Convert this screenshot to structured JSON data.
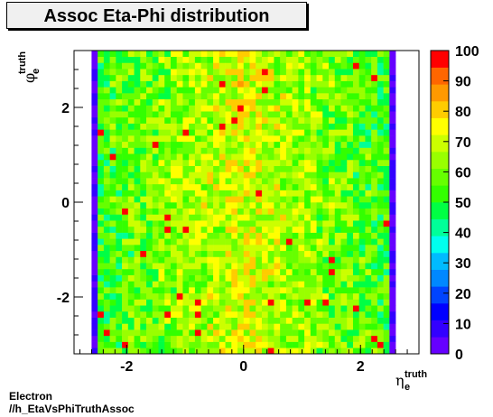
{
  "title": "Assoc Eta-Phi distribution",
  "footer": {
    "line1": "Electron",
    "line2": "//h_EtaVsPhiTruthAssoc"
  },
  "chart_data": {
    "type": "heatmap",
    "title": "Assoc Eta-Phi distribution",
    "xlabel": {
      "symbol": "η",
      "superscript": "truth",
      "subscript": "e"
    },
    "ylabel": {
      "symbol": "φ",
      "superscript": "truth",
      "subscript": "e"
    },
    "xlim": [
      -2.9,
      3.0
    ],
    "ylim": [
      -3.2,
      3.2
    ],
    "xticks": [
      -2,
      0,
      2
    ],
    "yticks": [
      -2,
      0,
      2
    ],
    "zlim": [
      0,
      100
    ],
    "zticks": [
      0,
      10,
      20,
      30,
      40,
      50,
      60,
      70,
      80,
      90,
      100
    ],
    "nbins_x": 50,
    "nbins_y": 50,
    "filled_x_range": [
      -2.6,
      2.6
    ],
    "edge_value": 3,
    "typical_value": 63,
    "peak_value": 100,
    "colormap": [
      "#6600ff",
      "#3300ff",
      "#0000ff",
      "#0044ff",
      "#0088ff",
      "#00bbff",
      "#00ffee",
      "#00ff99",
      "#00ff44",
      "#33ff00",
      "#66ff00",
      "#99ff00",
      "#ccff00",
      "#ffff00",
      "#ffcc00",
      "#ff9900",
      "#ff6600",
      "#ff0000"
    ]
  }
}
